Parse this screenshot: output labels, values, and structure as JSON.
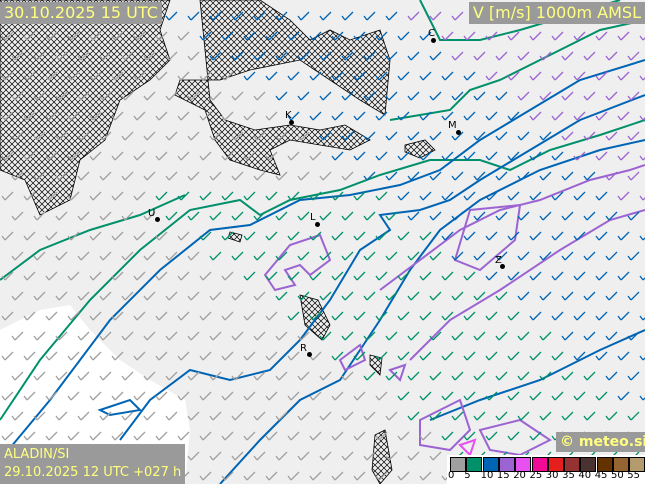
{
  "header": {
    "valid_time": "30.10.2025 15 UTC",
    "parameter": "V [m/s] 1000m AMSL"
  },
  "footer": {
    "model": "ALADIN/SI",
    "run": "29.10.2025 12 UTC +027 h",
    "copyright": "© meteo.si"
  },
  "legend": {
    "unit": "m/s",
    "labels": [
      "0",
      "5",
      "10",
      "15",
      "20",
      "25",
      "30",
      "35",
      "40",
      "45",
      "50",
      "55"
    ],
    "colors": [
      "#a0a0a0",
      "#00906a",
      "#0064b4",
      "#9b64d2",
      "#e650f0",
      "#f00a96",
      "#e61e1e",
      "#963232",
      "#4a3232",
      "#643200",
      "#966432",
      "#b49b6e"
    ]
  },
  "cities": [
    {
      "label": "C"
    },
    {
      "label": "K"
    },
    {
      "label": "M"
    },
    {
      "label": "U"
    },
    {
      "label": "L"
    },
    {
      "label": "Z"
    },
    {
      "label": "R"
    }
  ],
  "contour_colors": {
    "5": "#00906a",
    "10": "#0064b4",
    "15": "#9b64d2",
    "20": "#e650f0"
  }
}
